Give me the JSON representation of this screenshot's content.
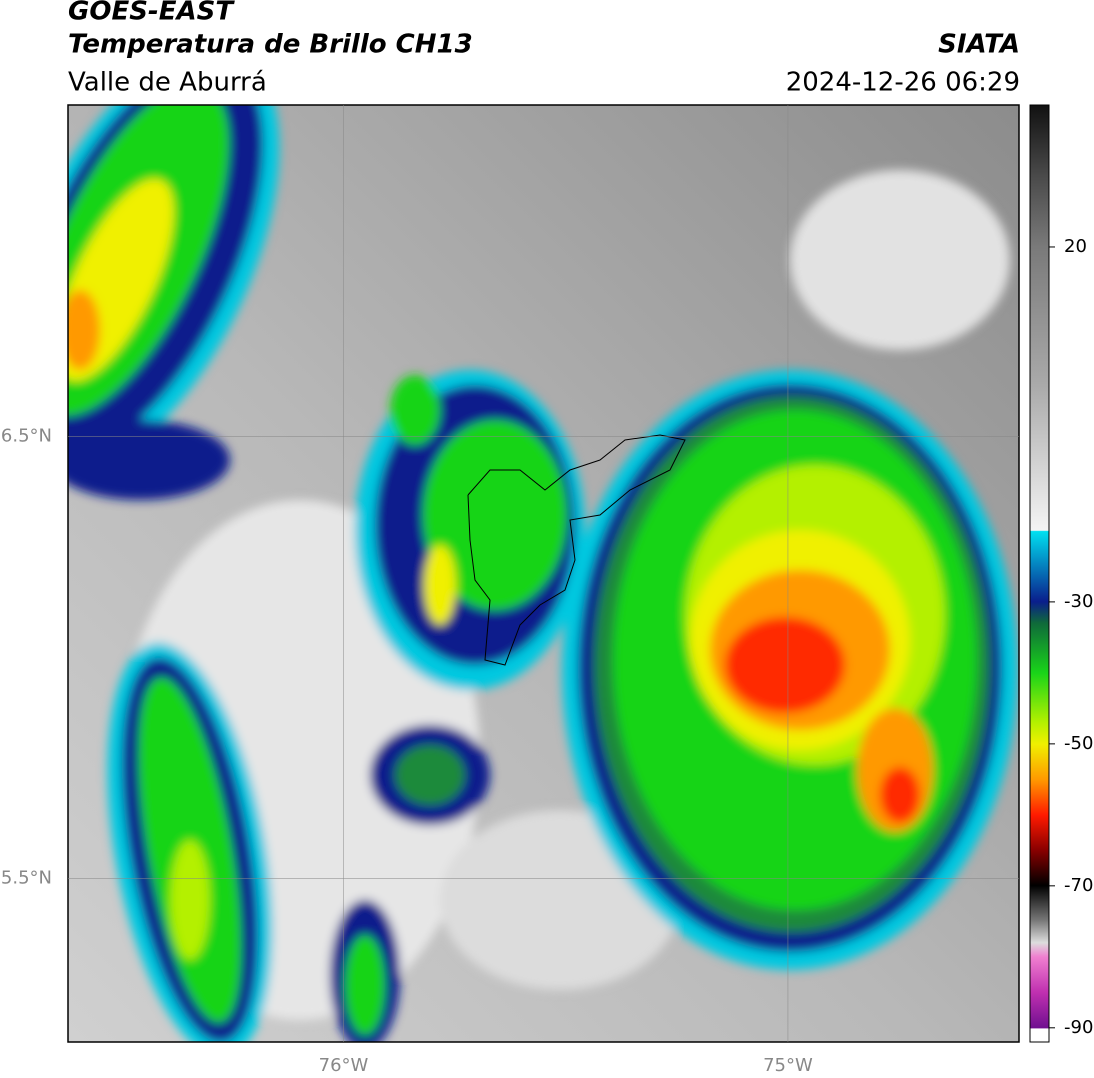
{
  "header": {
    "title": "GOES-EAST",
    "subtitle": "Temperatura de Brillo CH13",
    "region": "Valle de Aburrá",
    "source": "SIATA",
    "datetime": "2024-12-26 06:29"
  },
  "map": {
    "xlim": [
      -76.62,
      -74.48
    ],
    "ylim": [
      5.13,
      7.25
    ],
    "xticks": [
      {
        "value": -76,
        "label": "76°W"
      },
      {
        "value": -75,
        "label": "75°W"
      }
    ],
    "yticks": [
      {
        "value": 6.5,
        "label": "6.5°N"
      },
      {
        "value": 5.5,
        "label": "5.5°N"
      }
    ],
    "grid": true
  },
  "colorbar": {
    "lim": [
      -92,
      40
    ],
    "ticks": [
      20,
      -30,
      -50,
      -70,
      -90
    ]
  }
}
